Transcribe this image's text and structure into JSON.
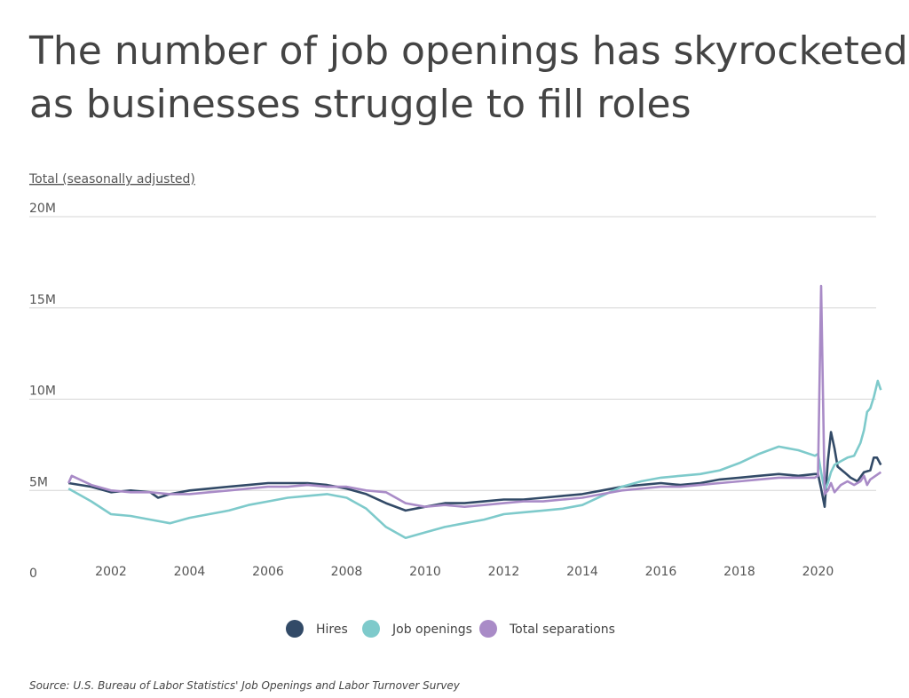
{
  "chart_data": {
    "type": "line",
    "title": [
      "The number of job openings has skyrocketed",
      "as businesses struggle to fill roles"
    ],
    "ylabel": "Total (seasonally adjusted)",
    "xlabel": "",
    "ylim": [
      0,
      20
    ],
    "xlim": [
      2000.85,
      2021.7
    ],
    "yticks": [
      {
        "v": 0,
        "label": "0"
      },
      {
        "v": 5,
        "label": "5M"
      },
      {
        "v": 10,
        "label": "10M"
      },
      {
        "v": 15,
        "label": "15M"
      },
      {
        "v": 20,
        "label": "20M"
      }
    ],
    "xticks": [
      {
        "v": 2002,
        "label": "2002"
      },
      {
        "v": 2004,
        "label": "2004"
      },
      {
        "v": 2006,
        "label": "2006"
      },
      {
        "v": 2008,
        "label": "2008"
      },
      {
        "v": 2010,
        "label": "2010"
      },
      {
        "v": 2012,
        "label": "2012"
      },
      {
        "v": 2014,
        "label": "2014"
      },
      {
        "v": 2016,
        "label": "2016"
      },
      {
        "v": 2018,
        "label": "2018"
      },
      {
        "v": 2020,
        "label": "2020"
      }
    ],
    "grid": true,
    "legend_position": "bottom-center",
    "series": [
      {
        "name": "Hires",
        "color": "#324a67",
        "points": [
          [
            2000.92,
            5.4
          ],
          [
            2001.5,
            5.2
          ],
          [
            2002,
            4.9
          ],
          [
            2002.5,
            5.0
          ],
          [
            2003,
            4.9
          ],
          [
            2003.2,
            4.6
          ],
          [
            2003.5,
            4.8
          ],
          [
            2004,
            5.0
          ],
          [
            2004.5,
            5.1
          ],
          [
            2005,
            5.2
          ],
          [
            2005.5,
            5.3
          ],
          [
            2006,
            5.4
          ],
          [
            2006.5,
            5.4
          ],
          [
            2007,
            5.4
          ],
          [
            2007.5,
            5.3
          ],
          [
            2008,
            5.1
          ],
          [
            2008.5,
            4.8
          ],
          [
            2009,
            4.3
          ],
          [
            2009.5,
            3.9
          ],
          [
            2010,
            4.1
          ],
          [
            2010.5,
            4.3
          ],
          [
            2011,
            4.3
          ],
          [
            2011.5,
            4.4
          ],
          [
            2012,
            4.5
          ],
          [
            2012.5,
            4.5
          ],
          [
            2013,
            4.6
          ],
          [
            2013.5,
            4.7
          ],
          [
            2014,
            4.8
          ],
          [
            2014.5,
            5.0
          ],
          [
            2015,
            5.2
          ],
          [
            2015.5,
            5.3
          ],
          [
            2016,
            5.4
          ],
          [
            2016.5,
            5.3
          ],
          [
            2017,
            5.4
          ],
          [
            2017.5,
            5.6
          ],
          [
            2018,
            5.7
          ],
          [
            2018.5,
            5.8
          ],
          [
            2019,
            5.9
          ],
          [
            2019.5,
            5.8
          ],
          [
            2019.92,
            5.9
          ],
          [
            2020.0,
            5.9
          ],
          [
            2020.08,
            5.1
          ],
          [
            2020.17,
            4.1
          ],
          [
            2020.25,
            6.6
          ],
          [
            2020.33,
            8.2
          ],
          [
            2020.42,
            7.3
          ],
          [
            2020.5,
            6.3
          ],
          [
            2020.67,
            6.0
          ],
          [
            2020.83,
            5.7
          ],
          [
            2021.0,
            5.5
          ],
          [
            2021.17,
            6.0
          ],
          [
            2021.33,
            6.1
          ],
          [
            2021.42,
            6.8
          ],
          [
            2021.5,
            6.8
          ],
          [
            2021.6,
            6.4
          ]
        ]
      },
      {
        "name": "Job openings",
        "color": "#7ecacb",
        "points": [
          [
            2000.92,
            5.1
          ],
          [
            2001.25,
            4.7
          ],
          [
            2001.5,
            4.4
          ],
          [
            2002,
            3.7
          ],
          [
            2002.5,
            3.6
          ],
          [
            2003,
            3.4
          ],
          [
            2003.5,
            3.2
          ],
          [
            2004,
            3.5
          ],
          [
            2004.5,
            3.7
          ],
          [
            2005,
            3.9
          ],
          [
            2005.5,
            4.2
          ],
          [
            2006,
            4.4
          ],
          [
            2006.5,
            4.6
          ],
          [
            2007,
            4.7
          ],
          [
            2007.5,
            4.8
          ],
          [
            2008,
            4.6
          ],
          [
            2008.5,
            4.0
          ],
          [
            2009,
            3.0
          ],
          [
            2009.5,
            2.4
          ],
          [
            2010,
            2.7
          ],
          [
            2010.5,
            3.0
          ],
          [
            2011,
            3.2
          ],
          [
            2011.5,
            3.4
          ],
          [
            2012,
            3.7
          ],
          [
            2012.5,
            3.8
          ],
          [
            2013,
            3.9
          ],
          [
            2013.5,
            4.0
          ],
          [
            2014,
            4.2
          ],
          [
            2014.5,
            4.7
          ],
          [
            2015,
            5.2
          ],
          [
            2015.5,
            5.5
          ],
          [
            2016,
            5.7
          ],
          [
            2016.5,
            5.8
          ],
          [
            2017,
            5.9
          ],
          [
            2017.5,
            6.1
          ],
          [
            2018,
            6.5
          ],
          [
            2018.5,
            7.0
          ],
          [
            2019,
            7.4
          ],
          [
            2019.5,
            7.2
          ],
          [
            2019.92,
            6.9
          ],
          [
            2020.0,
            7.0
          ],
          [
            2020.08,
            6.0
          ],
          [
            2020.17,
            5.0
          ],
          [
            2020.25,
            5.4
          ],
          [
            2020.33,
            6.0
          ],
          [
            2020.42,
            6.4
          ],
          [
            2020.58,
            6.6
          ],
          [
            2020.75,
            6.8
          ],
          [
            2020.92,
            6.9
          ],
          [
            2021.08,
            7.6
          ],
          [
            2021.17,
            8.3
          ],
          [
            2021.25,
            9.3
          ],
          [
            2021.33,
            9.5
          ],
          [
            2021.42,
            10.1
          ],
          [
            2021.52,
            11.0
          ],
          [
            2021.6,
            10.5
          ]
        ]
      },
      {
        "name": "Total separations",
        "color": "#a98bc7",
        "points": [
          [
            2000.92,
            5.4
          ],
          [
            2001.0,
            5.8
          ],
          [
            2001.5,
            5.3
          ],
          [
            2002,
            5.0
          ],
          [
            2002.5,
            4.9
          ],
          [
            2003,
            4.9
          ],
          [
            2003.5,
            4.8
          ],
          [
            2004,
            4.8
          ],
          [
            2004.5,
            4.9
          ],
          [
            2005,
            5.0
          ],
          [
            2005.5,
            5.1
          ],
          [
            2006,
            5.2
          ],
          [
            2006.5,
            5.2
          ],
          [
            2007,
            5.3
          ],
          [
            2007.5,
            5.2
          ],
          [
            2008,
            5.2
          ],
          [
            2008.5,
            5.0
          ],
          [
            2009,
            4.9
          ],
          [
            2009.5,
            4.3
          ],
          [
            2010,
            4.1
          ],
          [
            2010.5,
            4.2
          ],
          [
            2011,
            4.1
          ],
          [
            2011.5,
            4.2
          ],
          [
            2012,
            4.3
          ],
          [
            2012.5,
            4.4
          ],
          [
            2013,
            4.4
          ],
          [
            2013.5,
            4.5
          ],
          [
            2014,
            4.6
          ],
          [
            2014.5,
            4.8
          ],
          [
            2015,
            5.0
          ],
          [
            2015.5,
            5.1
          ],
          [
            2016,
            5.2
          ],
          [
            2016.5,
            5.2
          ],
          [
            2017,
            5.3
          ],
          [
            2017.5,
            5.4
          ],
          [
            2018,
            5.5
          ],
          [
            2018.5,
            5.6
          ],
          [
            2019,
            5.7
          ],
          [
            2019.5,
            5.7
          ],
          [
            2019.92,
            5.7
          ],
          [
            2020.0,
            5.8
          ],
          [
            2020.08,
            16.2
          ],
          [
            2020.17,
            4.8
          ],
          [
            2020.25,
            5.0
          ],
          [
            2020.33,
            5.4
          ],
          [
            2020.42,
            4.9
          ],
          [
            2020.58,
            5.3
          ],
          [
            2020.75,
            5.5
          ],
          [
            2020.92,
            5.3
          ],
          [
            2021.08,
            5.5
          ],
          [
            2021.17,
            5.8
          ],
          [
            2021.25,
            5.3
          ],
          [
            2021.33,
            5.6
          ],
          [
            2021.6,
            6.0
          ]
        ]
      }
    ],
    "source": "Source:  U.S. Bureau of Labor Statistics' Job Openings and Labor Turnover Survey"
  }
}
